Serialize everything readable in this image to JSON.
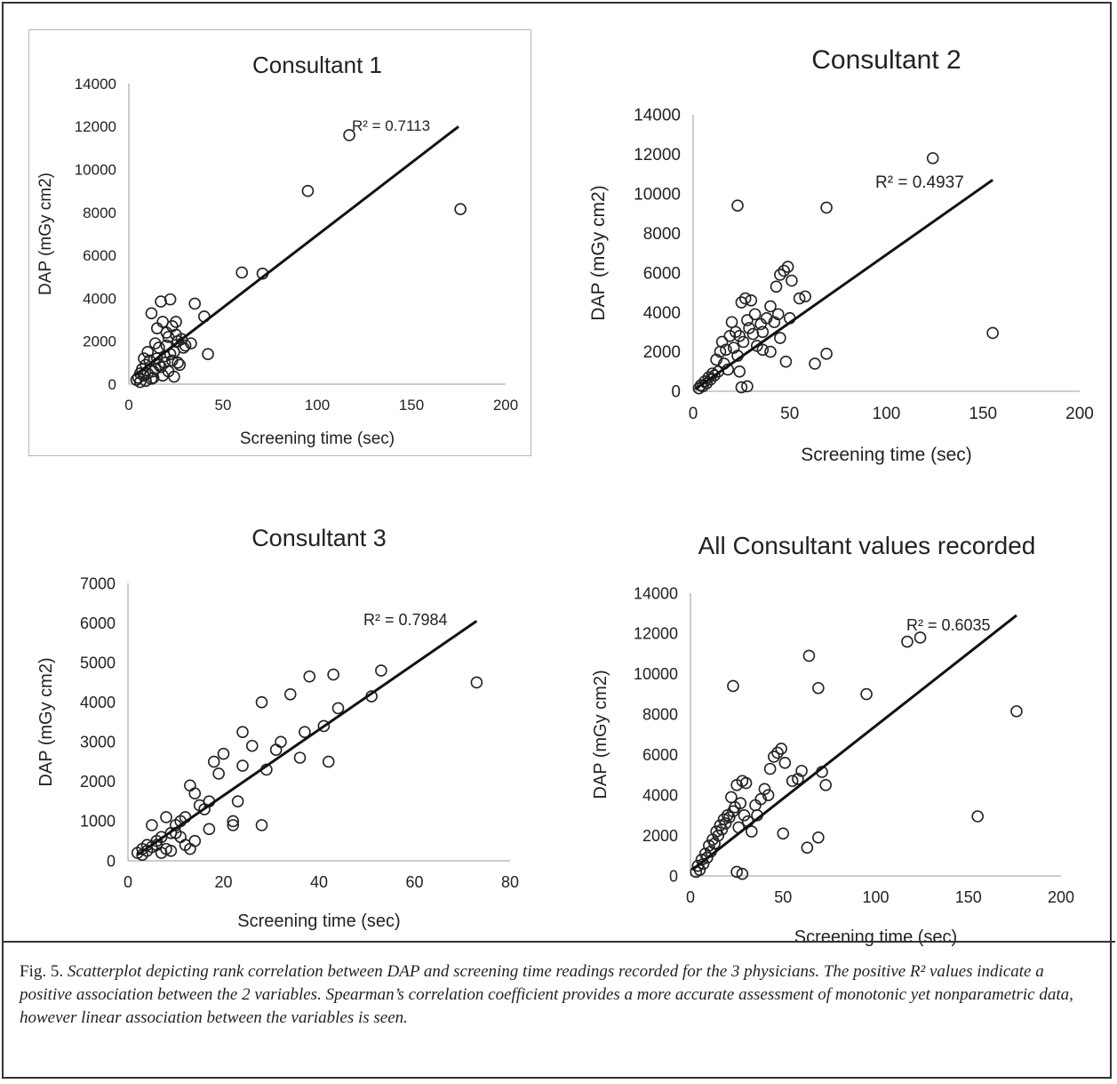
{
  "caption": {
    "lead": "Fig. 5.",
    "text": "Scatterplot depicting  rank correlation between DAP and screening time readings recorded for the 3 physicians. The positive R² values indicate a positive association between the 2 variables. Spearman’s correlation coefficient provides a more accurate assessment of  monotonic yet nonparametric data, however linear association between the variables is seen."
  },
  "chart_data": [
    {
      "type": "scatter",
      "title": "Consultant 1",
      "xlabel": "Screening time (sec)",
      "ylabel": "DAP (mGy cm2)",
      "xlim": [
        0,
        200
      ],
      "ylim": [
        0,
        14000
      ],
      "xticks": [
        0,
        50,
        100,
        150,
        200
      ],
      "yticks": [
        0,
        2000,
        4000,
        6000,
        8000,
        10000,
        12000,
        14000
      ],
      "trendline": {
        "x": [
          3,
          175
        ],
        "y": [
          400,
          12000
        ],
        "label": "R² = 0.7113"
      },
      "x": [
        117,
        95,
        176,
        60,
        71,
        17,
        22,
        35,
        40,
        42,
        12,
        15,
        18,
        20,
        23,
        25,
        28,
        30,
        10,
        8,
        14,
        16,
        19,
        21,
        24,
        26,
        5,
        6,
        7,
        9,
        11,
        13,
        17,
        22,
        27,
        33,
        18,
        20,
        24,
        12,
        15,
        9,
        14,
        19,
        25,
        29,
        4,
        6,
        8,
        10,
        13,
        16,
        21,
        23,
        26
      ],
      "y": [
        11600,
        9000,
        8150,
        5200,
        5150,
        3850,
        3950,
        3750,
        3150,
        1400,
        3300,
        2600,
        2900,
        2400,
        2700,
        2900,
        2100,
        1800,
        1500,
        1200,
        1900,
        1700,
        1300,
        2200,
        1500,
        1000,
        300,
        500,
        700,
        900,
        1100,
        600,
        800,
        1400,
        900,
        1900,
        400,
        1800,
        350,
        250,
        1200,
        150,
        700,
        1000,
        2300,
        1700,
        200,
        100,
        400,
        500,
        300,
        900,
        600,
        1100,
        2000
      ]
    },
    {
      "type": "scatter",
      "title": "Consultant 2",
      "xlabel": "Screening time (sec)",
      "ylabel": "DAP (mGy cm2)",
      "xlim": [
        0,
        200
      ],
      "ylim": [
        0,
        14000
      ],
      "xticks": [
        0,
        50,
        100,
        150,
        200
      ],
      "yticks": [
        0,
        2000,
        4000,
        6000,
        8000,
        10000,
        12000,
        14000
      ],
      "trendline": {
        "x": [
          1,
          155
        ],
        "y": [
          100,
          10700
        ],
        "label": "R² = 0.4937"
      },
      "x": [
        124,
        23,
        69,
        155,
        47,
        49,
        45,
        51,
        43,
        55,
        58,
        50,
        40,
        63,
        69,
        25,
        27,
        30,
        28,
        32,
        35,
        38,
        42,
        44,
        20,
        22,
        24,
        26,
        29,
        31,
        33,
        36,
        15,
        17,
        19,
        21,
        23,
        12,
        14,
        16,
        18,
        10,
        8,
        6,
        4,
        3,
        5,
        7,
        9,
        11,
        13,
        25,
        28,
        24,
        45,
        36,
        40,
        48
      ],
      "y": [
        11800,
        9400,
        9300,
        2950,
        6100,
        6300,
        5900,
        5600,
        5300,
        4700,
        4800,
        3700,
        4300,
        1400,
        1900,
        4500,
        4700,
        4600,
        3600,
        3900,
        3400,
        3700,
        3500,
        3900,
        3500,
        3000,
        2800,
        2500,
        3200,
        2900,
        2300,
        3000,
        2500,
        2100,
        2800,
        2200,
        1800,
        1600,
        2000,
        1400,
        1100,
        900,
        700,
        500,
        300,
        150,
        250,
        400,
        600,
        800,
        1000,
        200,
        250,
        1000,
        2700,
        2100,
        2000,
        1500
      ]
    },
    {
      "type": "scatter",
      "title": "Consultant 3",
      "xlabel": "Screening time (sec)",
      "ylabel": "DAP (mGy cm2)",
      "xlim": [
        0,
        80
      ],
      "ylim": [
        0,
        7000
      ],
      "xticks": [
        0,
        20,
        40,
        60,
        80
      ],
      "yticks": [
        0,
        1000,
        2000,
        3000,
        4000,
        5000,
        6000,
        7000
      ],
      "trendline": {
        "x": [
          2,
          73
        ],
        "y": [
          150,
          6050
        ],
        "label": "R² = 0.7984"
      },
      "x": [
        53,
        43,
        38,
        44,
        51,
        73,
        34,
        28,
        24,
        37,
        41,
        42,
        36,
        29,
        31,
        32,
        26,
        24,
        28,
        20,
        18,
        17,
        19,
        22,
        22,
        23,
        13,
        14,
        15,
        12,
        11,
        10,
        9,
        8,
        7,
        6,
        5,
        4,
        3,
        2,
        16,
        17,
        12,
        13,
        14,
        10,
        11,
        9,
        8,
        7,
        3,
        4,
        5,
        6
      ],
      "y": [
        4800,
        4700,
        4650,
        3850,
        4150,
        4500,
        4200,
        4000,
        3250,
        3250,
        3400,
        2500,
        2600,
        2300,
        2800,
        3000,
        2900,
        2400,
        900,
        2700,
        2500,
        1500,
        2200,
        1000,
        900,
        1500,
        1900,
        1700,
        1400,
        1100,
        1000,
        900,
        700,
        1100,
        600,
        500,
        900,
        400,
        300,
        200,
        1300,
        800,
        400,
        300,
        500,
        700,
        600,
        250,
        300,
        200,
        150,
        250,
        350,
        400
      ]
    },
    {
      "type": "scatter",
      "title": "All Consultant values recorded",
      "xlabel": "Screening time (sec)",
      "ylabel": "DAP (mGy cm2)",
      "xlim": [
        0,
        200
      ],
      "ylim": [
        0,
        14000
      ],
      "xticks": [
        0,
        50,
        100,
        150,
        200
      ],
      "yticks": [
        0,
        2000,
        4000,
        6000,
        8000,
        10000,
        12000,
        14000
      ],
      "trendline": {
        "x": [
          1,
          176
        ],
        "y": [
          300,
          12900
        ],
        "label": "R² = 0.6035"
      },
      "x": [
        117,
        124,
        64,
        23,
        69,
        95,
        176,
        155,
        47,
        49,
        45,
        51,
        43,
        55,
        58,
        60,
        71,
        73,
        63,
        69,
        50,
        40,
        42,
        38,
        35,
        30,
        28,
        25,
        27,
        22,
        20,
        18,
        16,
        14,
        12,
        10,
        8,
        6,
        4,
        3,
        5,
        7,
        9,
        11,
        13,
        15,
        17,
        19,
        21,
        23,
        24,
        26,
        29,
        31,
        33,
        36,
        25,
        28
      ],
      "y": [
        11600,
        11800,
        10900,
        9400,
        9300,
        9000,
        8150,
        2950,
        6100,
        6300,
        5900,
        5600,
        5300,
        4700,
        4800,
        5200,
        5150,
        4500,
        1400,
        1900,
        2100,
        4300,
        4000,
        3800,
        3500,
        4600,
        4700,
        4500,
        3600,
        3900,
        3000,
        2800,
        2500,
        2200,
        1800,
        1500,
        1100,
        800,
        500,
        200,
        300,
        600,
        900,
        1200,
        1600,
        2000,
        2300,
        2600,
        2900,
        3200,
        3400,
        2400,
        3000,
        2700,
        2200,
        3000,
        200,
        100
      ]
    }
  ]
}
